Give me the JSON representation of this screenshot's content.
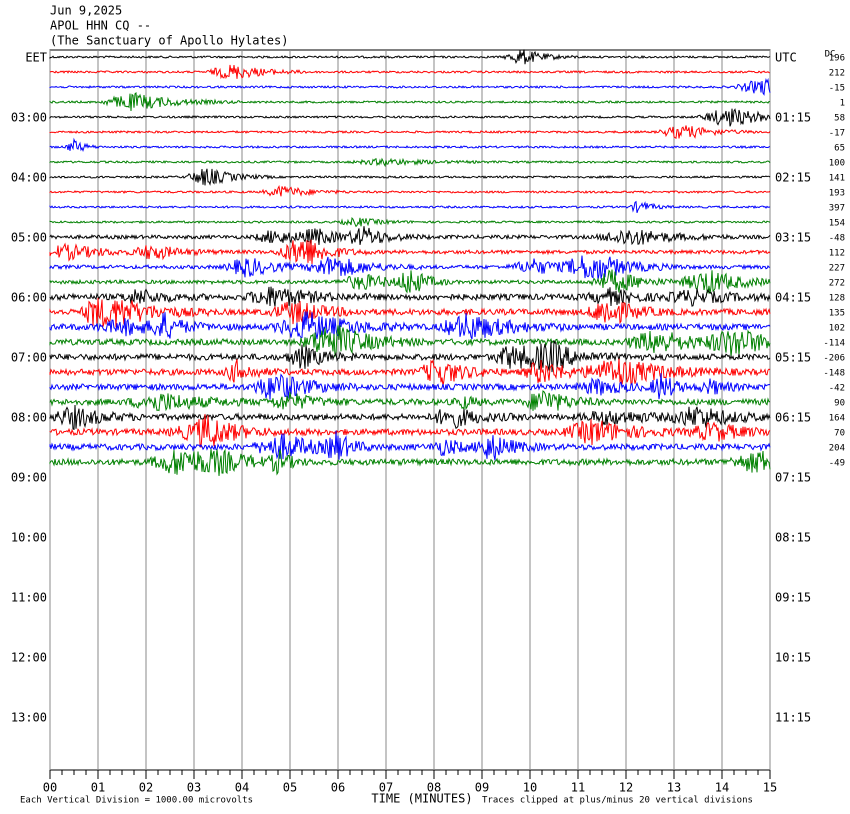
{
  "header": [
    "Jun 9,2025",
    "APOL HHN CQ --",
    "(The Sanctuary of Apollo Hylates)"
  ],
  "chart_data": {
    "type": "helicorder",
    "left_labels": [
      "EET",
      "03:00",
      "04:00",
      "05:00",
      "06:00",
      "07:00",
      "08:00",
      "09:00",
      "10:00",
      "11:00",
      "12:00",
      "13:00"
    ],
    "right_labels": [
      "UTC",
      "01:15",
      "02:15",
      "03:15",
      "04:15",
      "05:15",
      "06:15",
      "07:15",
      "08:15",
      "09:15",
      "10:15",
      "11:15"
    ],
    "dc_label": "DC",
    "dc_offsets": [
      196,
      212,
      -15,
      1,
      58,
      -17,
      65,
      100,
      141,
      193,
      397,
      154,
      -48,
      112,
      227,
      272,
      128,
      135,
      102,
      -114,
      -206,
      -148,
      -42,
      90,
      164,
      70,
      204,
      -49
    ],
    "colors": [
      "#000000",
      "#ff0000",
      "#0000ff",
      "#008000"
    ],
    "xlabel": "TIME (MINUTES)",
    "xlim": [
      0,
      15
    ],
    "xticks": [
      {
        "value": 0,
        "label": "00"
      },
      {
        "value": 1,
        "label": "01"
      },
      {
        "value": 2,
        "label": "02"
      },
      {
        "value": 3,
        "label": "03"
      },
      {
        "value": 4,
        "label": "04"
      },
      {
        "value": 5,
        "label": "05"
      },
      {
        "value": 6,
        "label": "06"
      },
      {
        "value": 7,
        "label": "07"
      },
      {
        "value": 8,
        "label": "08"
      },
      {
        "value": 9,
        "label": "09"
      },
      {
        "value": 10,
        "label": "10"
      },
      {
        "value": 11,
        "label": "11"
      },
      {
        "value": 12,
        "label": "12"
      },
      {
        "value": 13,
        "label": "13"
      },
      {
        "value": 14,
        "label": "14"
      },
      {
        "value": 15,
        "label": "15"
      }
    ],
    "footer_left": "Each Vertical Division = 1000.00 microvolts",
    "footer_right": "Traces clipped at plus/minus 20 vertical divisions"
  }
}
